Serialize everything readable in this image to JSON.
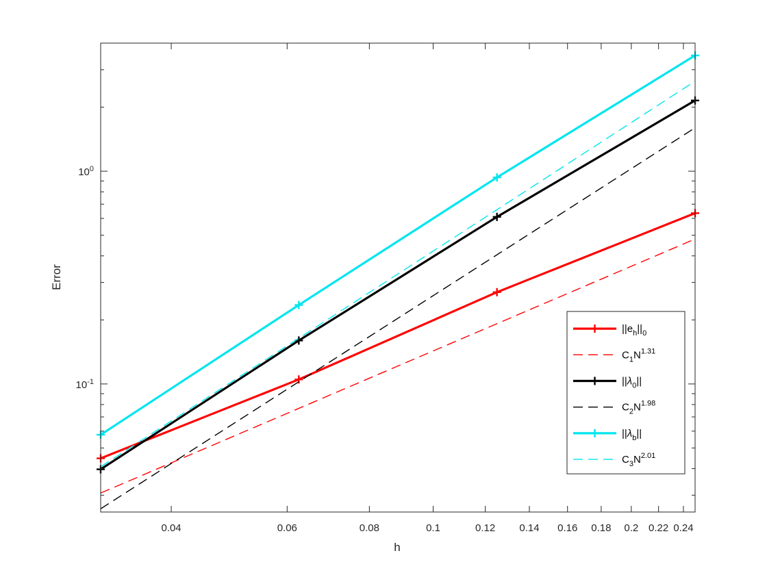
{
  "chart_data": {
    "type": "line",
    "xlabel": "h",
    "ylabel": "Error",
    "xscale": "log",
    "yscale": "log",
    "xlim": [
      0.03125,
      0.25
    ],
    "ylim": [
      0.025,
      4.0
    ],
    "grid": false,
    "legend_position": "right",
    "x_ticks": [
      {
        "value": 0.04,
        "label": "0.04"
      },
      {
        "value": 0.06,
        "label": "0.06"
      },
      {
        "value": 0.08,
        "label": "0.08"
      },
      {
        "value": 0.1,
        "label": "0.1"
      },
      {
        "value": 0.12,
        "label": "0.12"
      },
      {
        "value": 0.14,
        "label": "0.14"
      },
      {
        "value": 0.16,
        "label": "0.16"
      },
      {
        "value": 0.18,
        "label": "0.18"
      },
      {
        "value": 0.2,
        "label": "0.2"
      },
      {
        "value": 0.22,
        "label": "0.22"
      },
      {
        "value": 0.24,
        "label": "0.24"
      }
    ],
    "y_ticks": [
      {
        "value": 0.1,
        "base": "10",
        "exp": "-1"
      },
      {
        "value": 1.0,
        "base": "10",
        "exp": "0"
      }
    ],
    "series": [
      {
        "name_parts": [
          {
            "t": "||e"
          },
          {
            "t": "h",
            "s": "sub"
          },
          {
            "t": "||"
          },
          {
            "t": "0",
            "s": "sub"
          }
        ],
        "color": "#ff0000",
        "style": "solid",
        "marker": "plus",
        "x": [
          0.03125,
          0.0625,
          0.125,
          0.25
        ],
        "y": [
          0.0447,
          0.105,
          0.27,
          0.635
        ]
      },
      {
        "name_parts": [
          {
            "t": "C"
          },
          {
            "t": "1",
            "s": "sub"
          },
          {
            "t": "N"
          },
          {
            "t": "1.31",
            "s": "sup"
          }
        ],
        "color": "#ff0000",
        "style": "dashed",
        "marker": "none",
        "x": [
          0.03125,
          0.25
        ],
        "y": [
          0.0307,
          0.48
        ]
      },
      {
        "name_parts": [
          {
            "t": "||"
          },
          {
            "t": "λ",
            "s": "it"
          },
          {
            "t": "0",
            "s": "sub"
          },
          {
            "t": "||"
          }
        ],
        "color": "#000000",
        "style": "solid",
        "marker": "plus",
        "x": [
          0.03125,
          0.0625,
          0.125,
          0.25
        ],
        "y": [
          0.0397,
          0.16,
          0.61,
          2.15
        ]
      },
      {
        "name_parts": [
          {
            "t": "C"
          },
          {
            "t": "2",
            "s": "sub"
          },
          {
            "t": "N"
          },
          {
            "t": "1.98",
            "s": "sup"
          }
        ],
        "color": "#000000",
        "style": "dashed",
        "marker": "none",
        "x": [
          0.03125,
          0.25
        ],
        "y": [
          0.0259,
          1.6
        ]
      },
      {
        "name_parts": [
          {
            "t": "||"
          },
          {
            "t": "λ",
            "s": "it"
          },
          {
            "t": "b",
            "s": "sub"
          },
          {
            "t": "||"
          }
        ],
        "color": "#00e5ee",
        "style": "solid",
        "marker": "plus",
        "x": [
          0.03125,
          0.0625,
          0.125,
          0.25
        ],
        "y": [
          0.0577,
          0.235,
          0.935,
          3.5
        ]
      },
      {
        "name_parts": [
          {
            "t": "C"
          },
          {
            "t": "3",
            "s": "sub"
          },
          {
            "t": "N"
          },
          {
            "t": "2.01",
            "s": "sup"
          }
        ],
        "color": "#00e5ee",
        "style": "dashed",
        "marker": "none",
        "x": [
          0.03125,
          0.25
        ],
        "y": [
          0.0408,
          2.65
        ]
      }
    ]
  }
}
